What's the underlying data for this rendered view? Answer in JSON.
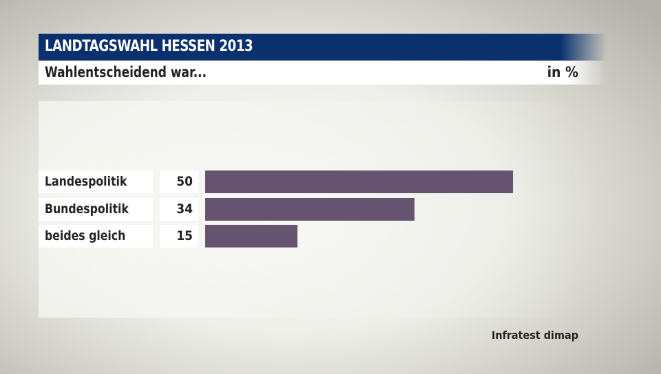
{
  "header": {
    "title": "LANDTAGSWAHL HESSEN 2013",
    "subtitle": "Wahlentscheidend war...",
    "unit": "in %"
  },
  "chart_data": {
    "type": "bar",
    "orientation": "horizontal",
    "title": "Wahlentscheidend war...",
    "unit": "in %",
    "categories": [
      "Landespolitik",
      "Bundespolitik",
      "beides gleich"
    ],
    "values": [
      50,
      34,
      15
    ],
    "value_labels": [
      "50",
      "34",
      "15"
    ],
    "bar_color": "#66536f",
    "grid": false
  },
  "source": "Infratest dimap"
}
